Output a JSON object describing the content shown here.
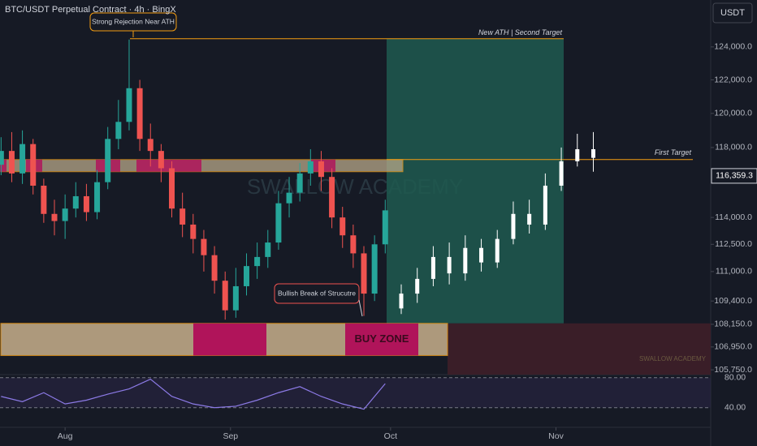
{
  "chart_data": [
    {
      "type": "candlestick",
      "title": "BTC/USDT Perpetual Contract · 4h · BingX",
      "currency": "USDT",
      "watermark": "SWALLOW ACADEMY",
      "signature": "SWALLOW ACADEMY",
      "log_scale": true,
      "xlim": [
        -12.2,
        121
      ],
      "xticks": [
        {
          "value": 0,
          "label": "Aug"
        },
        {
          "value": 31,
          "label": "Sep"
        },
        {
          "value": 61,
          "label": "Oct"
        },
        {
          "value": 92,
          "label": "Nov"
        }
      ],
      "ylim": [
        105500,
        126900
      ],
      "yticks": [
        {
          "value": 124000,
          "label": "124,000.0"
        },
        {
          "value": 122000,
          "label": "122,000.0"
        },
        {
          "value": 120000,
          "label": "120,000.0"
        },
        {
          "value": 118000,
          "label": "118,000.0"
        },
        {
          "value": 114000,
          "label": "114,000.0"
        },
        {
          "value": 112500,
          "label": "112,500.0"
        },
        {
          "value": 111000,
          "label": "111,000.0"
        },
        {
          "value": 109400,
          "label": "109,400.0"
        },
        {
          "value": 108150,
          "label": "108,150.0"
        },
        {
          "value": 106950,
          "label": "106,950.0"
        },
        {
          "value": 105750,
          "label": "105,750.0"
        }
      ],
      "current_price": {
        "value": 116359.3,
        "label": "116,359.3"
      },
      "series": [
        {
          "up_color": "#26a69a",
          "down_color": "#ef5350",
          "x": [
            -12,
            -10,
            -8,
            -6,
            -4,
            -2,
            0,
            2,
            4,
            6,
            8,
            10,
            12,
            14,
            16,
            18,
            20,
            22,
            24,
            26,
            28,
            30,
            32,
            34,
            36,
            38,
            40,
            42,
            44,
            46,
            48,
            50,
            52,
            54,
            56,
            58,
            60
          ],
          "open": [
            117000,
            117800,
            116500,
            118200,
            115800,
            114200,
            113800,
            114500,
            115200,
            114300,
            116000,
            118500,
            119500,
            121500,
            118500,
            117800,
            116800,
            114500,
            113600,
            112800,
            111900,
            110500,
            108900,
            110200,
            111300,
            111800,
            112600,
            114800,
            115400,
            116500,
            117200,
            116300,
            114000,
            113000,
            112000,
            109800,
            112500
          ],
          "high": [
            118600,
            118900,
            119000,
            118500,
            116200,
            115000,
            115300,
            116000,
            115900,
            116700,
            119200,
            120800,
            124450,
            122000,
            119400,
            118200,
            117200,
            115400,
            114200,
            113300,
            112400,
            111000,
            111200,
            112000,
            112600,
            113300,
            115500,
            116300,
            117100,
            117900,
            117800,
            116800,
            114600,
            113600,
            112400,
            113000,
            115000
          ],
          "low": [
            116400,
            116000,
            115900,
            115300,
            113700,
            113000,
            112800,
            114000,
            113800,
            113900,
            115600,
            117900,
            119000,
            117800,
            116900,
            116000,
            114000,
            112900,
            112000,
            111000,
            109800,
            108400,
            108500,
            109700,
            110600,
            111200,
            112200,
            114000,
            114900,
            115800,
            115500,
            113400,
            112300,
            111200,
            108600,
            109400,
            112000
          ],
          "close": [
            117800,
            116500,
            118200,
            115800,
            114200,
            113800,
            114500,
            115200,
            114300,
            116000,
            118500,
            119500,
            121500,
            118500,
            117800,
            116800,
            114500,
            113600,
            112800,
            111900,
            110500,
            108900,
            110200,
            111300,
            111800,
            112600,
            114800,
            115400,
            116500,
            117200,
            116300,
            114000,
            113000,
            112000,
            109800,
            112500,
            114400
          ]
        },
        {
          "up_color": "#ffffff",
          "down_color": "#ffffff",
          "x": [
            63,
            66,
            69,
            72,
            75,
            78,
            81,
            84,
            87,
            90,
            93,
            96,
            99
          ],
          "open": [
            109000,
            109800,
            110600,
            111800,
            110900,
            112300,
            111500,
            112800,
            114200,
            113600,
            115800,
            117200,
            117900
          ],
          "high": [
            110300,
            111200,
            112400,
            112600,
            113000,
            112800,
            113300,
            114900,
            115000,
            116500,
            118000,
            118800,
            118900
          ],
          "low": [
            108700,
            109300,
            110200,
            110300,
            110500,
            111000,
            111200,
            112500,
            113100,
            113300,
            115500,
            116900,
            116600
          ],
          "close": [
            109800,
            110600,
            111800,
            110900,
            112300,
            111500,
            112800,
            114200,
            113600,
            115800,
            117200,
            117900,
            117400
          ]
        }
      ],
      "supply_zone": {
        "low": 116600,
        "high": 117300
      },
      "buy_zone": {
        "label": "BUY ZONE",
        "low": 106500,
        "high": 108200
      },
      "target_box": {
        "low": 108200,
        "high": 124500
      },
      "second_target": {
        "label": "New ATH | Second Target",
        "value": 124500
      },
      "first_target": {
        "label": "First Target",
        "value": 117300
      },
      "annotations": [
        {
          "text": "Strong Rejection Near ATH"
        },
        {
          "text": "Bullish Break of Strucutre"
        }
      ]
    },
    {
      "type": "line",
      "x": [
        -12,
        -8,
        -4,
        0,
        4,
        8,
        12,
        16,
        20,
        24,
        28,
        32,
        36,
        40,
        44,
        48,
        52,
        56,
        60
      ],
      "values": [
        55,
        48,
        60,
        45,
        50,
        58,
        65,
        78,
        55,
        45,
        40,
        42,
        50,
        60,
        68,
        55,
        45,
        38,
        72
      ],
      "color": "#8c7ae6",
      "ylim": [
        16,
        84
      ],
      "yticks": [
        {
          "value": 80,
          "label": "80.00"
        },
        {
          "value": 40,
          "label": "40.00"
        }
      ]
    }
  ]
}
